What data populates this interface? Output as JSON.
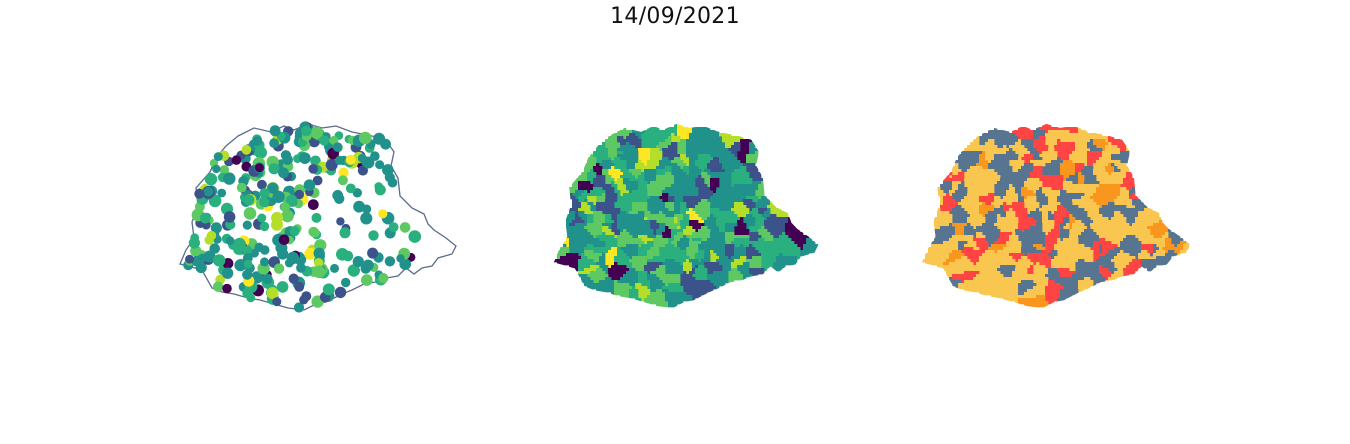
{
  "figure": {
    "title": "14/09/2021"
  },
  "colors": {
    "outline": "#5b6b8a",
    "viridis": [
      "#440154",
      "#3b528b",
      "#21918c",
      "#2ab07f",
      "#5ec962",
      "#b5de2b",
      "#fde725"
    ],
    "categories": [
      "#ff4444",
      "#f9c74f",
      "#f8961e",
      "#577590"
    ]
  }
}
